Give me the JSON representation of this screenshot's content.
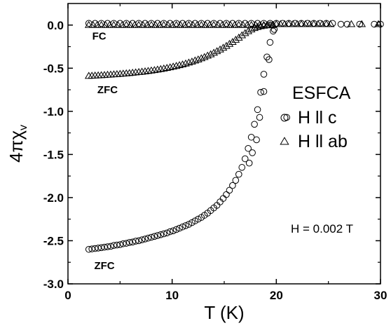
{
  "chart_data": {
    "type": "scatter",
    "title": "",
    "xlabel": "T (K)",
    "ylabel_main": "4πχ",
    "ylabel_sub": "v",
    "xlim": [
      0,
      30
    ],
    "ylim": [
      -3.0,
      0.25
    ],
    "x_ticks": [
      0,
      10,
      20,
      30
    ],
    "x_tick_labels": [
      "0",
      "10",
      "20",
      "30"
    ],
    "y_ticks": [
      0.0,
      -0.5,
      -1.0,
      -1.5,
      -2.0,
      -2.5,
      -3.0
    ],
    "y_tick_labels": [
      "0.0",
      "-0.5",
      "-1.0",
      "-1.5",
      "-2.0",
      "-2.5",
      "-3.0"
    ],
    "grid": false,
    "legend_position": "right",
    "sample_label": "ESFCA",
    "field_label": "H = 0.002 T",
    "series": [
      {
        "name": "H ll c",
        "marker": "circle",
        "points": [
          [
            2.0,
            -2.6
          ],
          [
            2.3,
            -2.595
          ],
          [
            2.6,
            -2.59
          ],
          [
            2.9,
            -2.585
          ],
          [
            3.2,
            -2.58
          ],
          [
            3.5,
            -2.575
          ],
          [
            3.8,
            -2.57
          ],
          [
            4.1,
            -2.565
          ],
          [
            4.4,
            -2.555
          ],
          [
            4.7,
            -2.55
          ],
          [
            5.0,
            -2.545
          ],
          [
            5.3,
            -2.535
          ],
          [
            5.6,
            -2.53
          ],
          [
            5.9,
            -2.52
          ],
          [
            6.2,
            -2.515
          ],
          [
            6.5,
            -2.505
          ],
          [
            6.8,
            -2.5
          ],
          [
            7.1,
            -2.49
          ],
          [
            7.4,
            -2.48
          ],
          [
            7.7,
            -2.47
          ],
          [
            8.0,
            -2.46
          ],
          [
            8.3,
            -2.45
          ],
          [
            8.6,
            -2.44
          ],
          [
            8.9,
            -2.43
          ],
          [
            9.2,
            -2.42
          ],
          [
            9.5,
            -2.41
          ],
          [
            9.8,
            -2.395
          ],
          [
            10.1,
            -2.385
          ],
          [
            10.4,
            -2.37
          ],
          [
            10.7,
            -2.355
          ],
          [
            11.0,
            -2.34
          ],
          [
            11.3,
            -2.325
          ],
          [
            11.6,
            -2.31
          ],
          [
            11.9,
            -2.29
          ],
          [
            12.2,
            -2.27
          ],
          [
            12.5,
            -2.25
          ],
          [
            12.8,
            -2.23
          ],
          [
            13.1,
            -2.205
          ],
          [
            13.4,
            -2.18
          ],
          [
            13.7,
            -2.15
          ],
          [
            14.0,
            -2.12
          ],
          [
            14.3,
            -2.09
          ],
          [
            14.6,
            -2.05
          ],
          [
            14.9,
            -2.01
          ],
          [
            15.2,
            -1.965
          ],
          [
            15.5,
            -1.915
          ],
          [
            15.8,
            -1.86
          ],
          [
            16.1,
            -1.8
          ],
          [
            16.4,
            -1.73
          ],
          [
            16.7,
            -1.65
          ],
          [
            17.0,
            -1.55
          ],
          [
            17.3,
            -1.43
          ],
          [
            17.6,
            -1.3
          ],
          [
            17.9,
            -1.15
          ],
          [
            18.2,
            -0.98
          ],
          [
            18.5,
            -0.78
          ],
          [
            18.8,
            -0.57
          ],
          [
            19.1,
            -0.37
          ],
          [
            19.4,
            -0.2
          ],
          [
            19.7,
            -0.07
          ],
          [
            21.0,
            -1.07
          ],
          [
            18.4,
            -1.07
          ],
          [
            18.1,
            -1.33
          ],
          [
            17.7,
            -1.48
          ],
          [
            17.4,
            -1.6
          ],
          [
            18.8,
            -0.77
          ],
          [
            19.3,
            -0.4
          ],
          [
            19.8,
            -0.05
          ],
          [
            2.0,
            0.02
          ],
          [
            2.6,
            0.02
          ],
          [
            3.2,
            0.02
          ],
          [
            3.8,
            0.02
          ],
          [
            4.4,
            0.02
          ],
          [
            5.0,
            0.02
          ],
          [
            5.6,
            0.02
          ],
          [
            6.2,
            0.02
          ],
          [
            6.8,
            0.02
          ],
          [
            7.4,
            0.02
          ],
          [
            8.0,
            0.02
          ],
          [
            8.6,
            0.02
          ],
          [
            9.2,
            0.02
          ],
          [
            9.8,
            0.02
          ],
          [
            10.4,
            0.02
          ],
          [
            11.0,
            0.02
          ],
          [
            11.6,
            0.02
          ],
          [
            12.2,
            0.02
          ],
          [
            12.8,
            0.02
          ],
          [
            13.4,
            0.02
          ],
          [
            14.0,
            0.02
          ],
          [
            14.6,
            0.02
          ],
          [
            15.2,
            0.02
          ],
          [
            15.8,
            0.02
          ],
          [
            16.4,
            0.02
          ],
          [
            17.0,
            0.02
          ],
          [
            17.6,
            0.02
          ],
          [
            18.2,
            0.02
          ],
          [
            18.8,
            0.02
          ],
          [
            19.4,
            0.02
          ],
          [
            20.0,
            0.02
          ],
          [
            20.6,
            0.02
          ],
          [
            21.2,
            0.02
          ],
          [
            21.8,
            0.02
          ],
          [
            22.4,
            0.02
          ],
          [
            23.0,
            0.02
          ],
          [
            23.6,
            0.02
          ],
          [
            24.2,
            0.02
          ],
          [
            24.8,
            0.02
          ],
          [
            25.4,
            0.02
          ],
          [
            26.2,
            0.01
          ],
          [
            26.8,
            0.01
          ],
          [
            28.0,
            0.01
          ],
          [
            29.4,
            0.01
          ],
          [
            30.0,
            0.01
          ]
        ]
      },
      {
        "name": "H ll ab",
        "marker": "triangle",
        "points": [
          [
            2.0,
            -0.59
          ],
          [
            2.3,
            -0.588
          ],
          [
            2.6,
            -0.586
          ],
          [
            2.9,
            -0.584
          ],
          [
            3.2,
            -0.582
          ],
          [
            3.5,
            -0.58
          ],
          [
            3.8,
            -0.577
          ],
          [
            4.1,
            -0.575
          ],
          [
            4.4,
            -0.572
          ],
          [
            4.7,
            -0.57
          ],
          [
            5.0,
            -0.567
          ],
          [
            5.3,
            -0.564
          ],
          [
            5.6,
            -0.561
          ],
          [
            5.9,
            -0.558
          ],
          [
            6.2,
            -0.554
          ],
          [
            6.5,
            -0.55
          ],
          [
            6.8,
            -0.546
          ],
          [
            7.1,
            -0.542
          ],
          [
            7.4,
            -0.538
          ],
          [
            7.7,
            -0.533
          ],
          [
            8.0,
            -0.528
          ],
          [
            8.3,
            -0.523
          ],
          [
            8.6,
            -0.517
          ],
          [
            8.9,
            -0.511
          ],
          [
            9.2,
            -0.505
          ],
          [
            9.5,
            -0.498
          ],
          [
            9.8,
            -0.491
          ],
          [
            10.1,
            -0.483
          ],
          [
            10.4,
            -0.475
          ],
          [
            10.7,
            -0.466
          ],
          [
            11.0,
            -0.457
          ],
          [
            11.3,
            -0.447
          ],
          [
            11.6,
            -0.436
          ],
          [
            11.9,
            -0.425
          ],
          [
            12.2,
            -0.412
          ],
          [
            12.5,
            -0.4
          ],
          [
            12.8,
            -0.386
          ],
          [
            13.1,
            -0.372
          ],
          [
            13.4,
            -0.356
          ],
          [
            13.7,
            -0.34
          ],
          [
            14.0,
            -0.322
          ],
          [
            14.3,
            -0.304
          ],
          [
            14.6,
            -0.285
          ],
          [
            14.9,
            -0.264
          ],
          [
            15.2,
            -0.243
          ],
          [
            15.5,
            -0.22
          ],
          [
            15.8,
            -0.197
          ],
          [
            16.1,
            -0.172
          ],
          [
            16.4,
            -0.147
          ],
          [
            16.7,
            -0.12
          ],
          [
            17.0,
            -0.095
          ],
          [
            17.3,
            -0.072
          ],
          [
            17.6,
            -0.052
          ],
          [
            17.9,
            -0.036
          ],
          [
            18.2,
            -0.024
          ],
          [
            18.5,
            -0.014
          ],
          [
            18.8,
            -0.008
          ],
          [
            19.1,
            -0.004
          ],
          [
            19.4,
            -0.001
          ],
          [
            19.7,
            0.0
          ],
          [
            2.0,
            0.0
          ],
          [
            2.4,
            0.0
          ],
          [
            2.8,
            0.0
          ],
          [
            3.2,
            0.0
          ],
          [
            3.6,
            0.0
          ],
          [
            4.0,
            0.0
          ],
          [
            4.4,
            0.0
          ],
          [
            4.8,
            0.0
          ],
          [
            5.2,
            0.0
          ],
          [
            5.6,
            0.0
          ],
          [
            6.0,
            0.0
          ],
          [
            6.4,
            0.0
          ],
          [
            6.8,
            0.0
          ],
          [
            7.2,
            0.0
          ],
          [
            7.6,
            0.0
          ],
          [
            8.0,
            0.0
          ],
          [
            8.4,
            0.0
          ],
          [
            8.8,
            0.0
          ],
          [
            9.2,
            0.0
          ],
          [
            9.6,
            0.0
          ],
          [
            10.0,
            0.0
          ],
          [
            10.4,
            0.0
          ],
          [
            10.8,
            0.0
          ],
          [
            11.2,
            0.0
          ],
          [
            11.6,
            0.0
          ],
          [
            12.0,
            0.0
          ],
          [
            12.4,
            0.0
          ],
          [
            12.8,
            0.0
          ],
          [
            13.2,
            0.0
          ],
          [
            13.6,
            0.0
          ],
          [
            14.0,
            0.0
          ],
          [
            14.4,
            0.0
          ],
          [
            14.8,
            0.0
          ],
          [
            15.2,
            0.0
          ],
          [
            15.6,
            0.0
          ],
          [
            16.0,
            0.0
          ],
          [
            16.4,
            0.0
          ],
          [
            16.8,
            0.0
          ],
          [
            17.2,
            0.0
          ],
          [
            17.6,
            0.0
          ],
          [
            18.0,
            0.0
          ],
          [
            18.4,
            0.0
          ],
          [
            18.8,
            0.0
          ],
          [
            19.2,
            0.0
          ],
          [
            19.6,
            0.0
          ],
          [
            20.0,
            0.01
          ],
          [
            20.4,
            0.01
          ],
          [
            20.8,
            0.01
          ],
          [
            21.2,
            0.01
          ],
          [
            21.6,
            0.01
          ],
          [
            22.0,
            0.01
          ],
          [
            22.4,
            0.01
          ],
          [
            22.8,
            0.01
          ],
          [
            23.2,
            0.01
          ],
          [
            23.6,
            0.01
          ],
          [
            24.0,
            0.01
          ],
          [
            24.4,
            0.01
          ],
          [
            24.8,
            0.01
          ],
          [
            25.2,
            0.01
          ],
          [
            27.2,
            0.01
          ],
          [
            28.2,
            0.01
          ],
          [
            29.8,
            0.01
          ]
        ]
      }
    ],
    "annotations": [
      {
        "text": "FC",
        "x": 3.0,
        "y": -0.17
      },
      {
        "text": "ZFC",
        "x": 3.8,
        "y": -0.79
      },
      {
        "text": "ZFC",
        "x": 3.5,
        "y": -2.83
      }
    ],
    "legend": [
      {
        "marker": "circle",
        "label": "H ll c"
      },
      {
        "marker": "triangle",
        "label": "H ll ab"
      }
    ]
  }
}
